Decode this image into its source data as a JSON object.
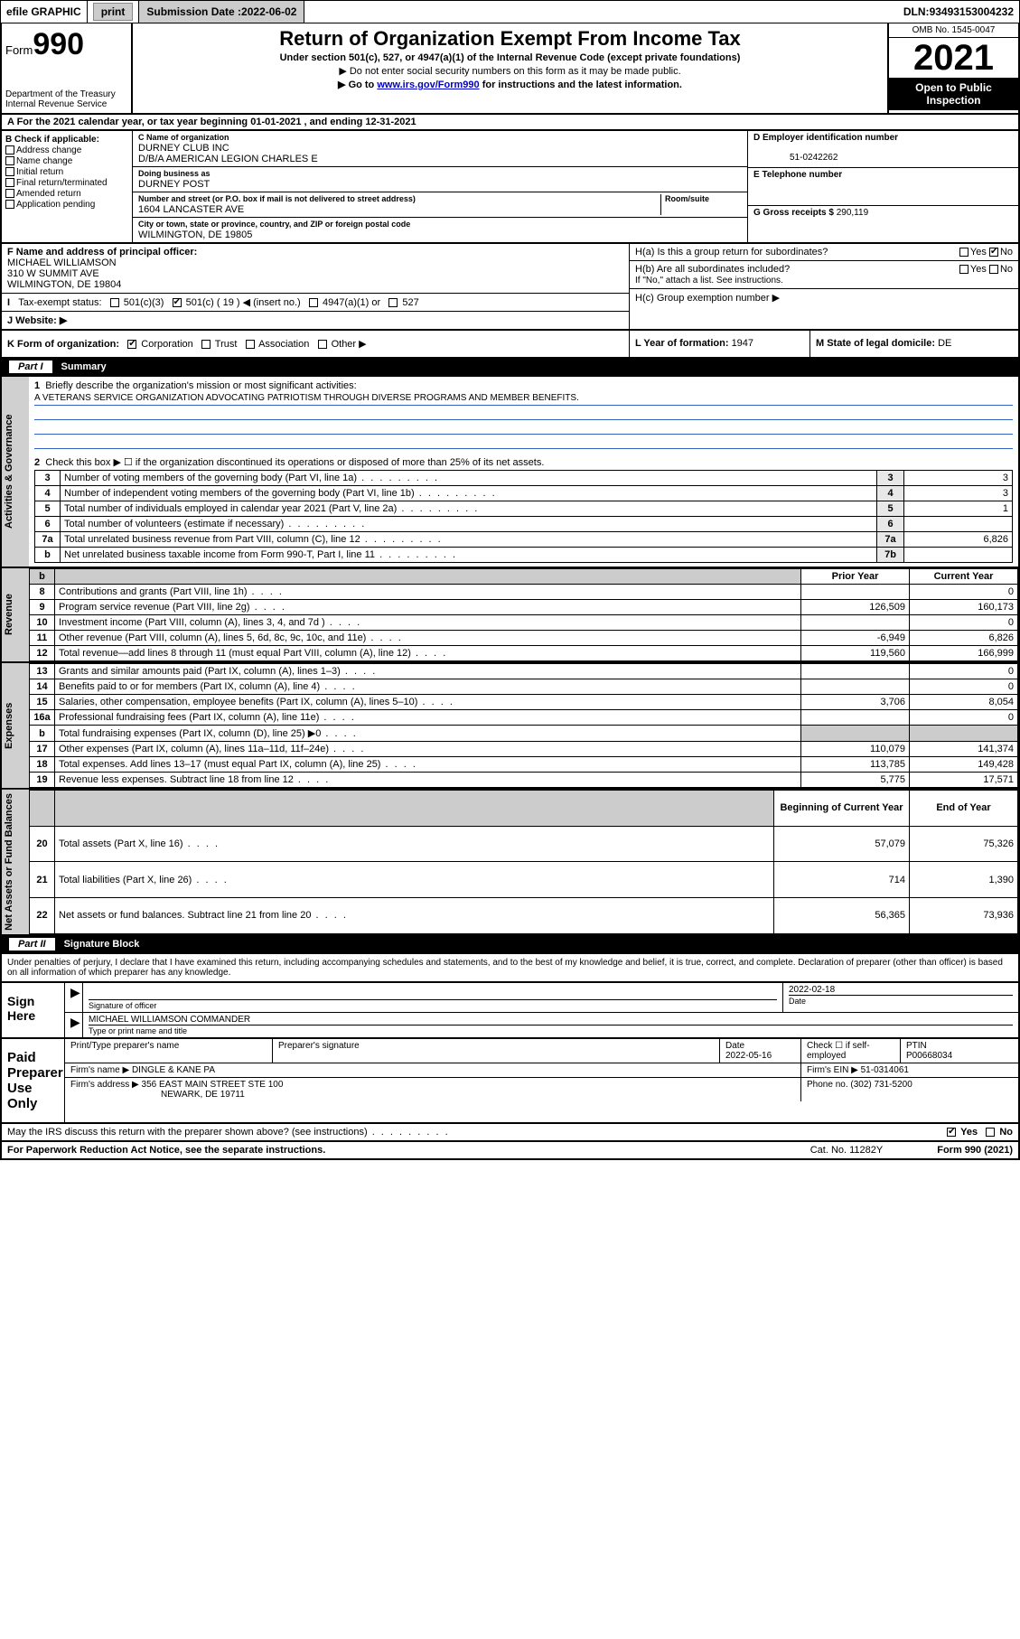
{
  "topbar": {
    "efile": "efile GRAPHIC",
    "print": "print",
    "submission_label": "Submission Date : ",
    "submission_date": "2022-06-02",
    "dln_label": "DLN: ",
    "dln": "93493153004232"
  },
  "header": {
    "form_label": "Form",
    "form_no": "990",
    "dept": "Department of the Treasury",
    "irs": "Internal Revenue Service",
    "title": "Return of Organization Exempt From Income Tax",
    "sub1": "Under section 501(c), 527, or 4947(a)(1) of the Internal Revenue Code (except private foundations)",
    "sub2": "▶ Do not enter social security numbers on this form as it may be made public.",
    "sub3_pre": "▶ Go to ",
    "sub3_link": "www.irs.gov/Form990",
    "sub3_post": " for instructions and the latest information.",
    "omb": "OMB No. 1545-0047",
    "year": "2021",
    "open": "Open to Public Inspection"
  },
  "period": {
    "text_pre": "A For the 2021 calendar year, or tax year beginning ",
    "begin": "01-01-2021",
    "mid": " , and ending ",
    "end": "12-31-2021"
  },
  "boxB": {
    "title": "B Check if applicable:",
    "items": [
      "Address change",
      "Name change",
      "Initial return",
      "Final return/terminated",
      "Amended return",
      "Application pending"
    ]
  },
  "boxC": {
    "name_lbl": "C Name of organization",
    "name": "DURNEY CLUB INC",
    "dba_line": "D/B/A AMERICAN LEGION CHARLES E",
    "dba_lbl": "Doing business as",
    "dba": "DURNEY POST",
    "addr_lbl": "Number and street (or P.O. box if mail is not delivered to street address)",
    "room_lbl": "Room/suite",
    "addr": "1604 LANCASTER AVE",
    "city_lbl": "City or town, state or province, country, and ZIP or foreign postal code",
    "city": "WILMINGTON, DE  19805"
  },
  "boxD": {
    "lbl": "D Employer identification number",
    "val": "51-0242262"
  },
  "boxE": {
    "lbl": "E Telephone number",
    "val": ""
  },
  "boxG": {
    "lbl": "G Gross receipts $ ",
    "val": "290,119"
  },
  "boxF": {
    "lbl": "F Name and address of principal officer:",
    "name": "MICHAEL WILLIAMSON",
    "addr1": "310 W SUMMIT AVE",
    "addr2": "WILMINGTON, DE  19804"
  },
  "boxH": {
    "a": "H(a)  Is this a group return for subordinates?",
    "b": "H(b)  Are all subordinates included?",
    "note": "If \"No,\" attach a list. See instructions.",
    "c": "H(c)  Group exemption number ▶",
    "yes": "Yes",
    "no": "No"
  },
  "boxI": {
    "lbl": "Tax-exempt status:",
    "o1": "501(c)(3)",
    "o2": "501(c) ( 19 ) ◀ (insert no.)",
    "o3": "4947(a)(1) or",
    "o4": "527"
  },
  "boxJ": {
    "lbl": "J   Website: ▶"
  },
  "boxK": {
    "lbl": "K Form of organization:",
    "o1": "Corporation",
    "o2": "Trust",
    "o3": "Association",
    "o4": "Other ▶"
  },
  "boxL": {
    "lbl": "L Year of formation: ",
    "val": "1947"
  },
  "boxM": {
    "lbl": "M State of legal domicile: ",
    "val": "DE"
  },
  "part1": {
    "num": "Part I",
    "title": "Summary"
  },
  "vlabels": {
    "gov": "Activities & Governance",
    "rev": "Revenue",
    "exp": "Expenses",
    "net": "Net Assets or Fund Balances"
  },
  "summary": {
    "l1_lbl": "Briefly describe the organization's mission or most significant activities:",
    "l1_txt": "A VETERANS SERVICE ORGANIZATION ADVOCATING PATRIOTISM THROUGH DIVERSE PROGRAMS AND MEMBER BENEFITS.",
    "l2": "Check this box ▶ ☐  if the organization discontinued its operations or disposed of more than 25% of its net assets.",
    "rows_gov": [
      {
        "n": "3",
        "t": "Number of voting members of the governing body (Part VI, line 1a)",
        "r": "3",
        "v": "3"
      },
      {
        "n": "4",
        "t": "Number of independent voting members of the governing body (Part VI, line 1b)",
        "r": "4",
        "v": "3"
      },
      {
        "n": "5",
        "t": "Total number of individuals employed in calendar year 2021 (Part V, line 2a)",
        "r": "5",
        "v": "1"
      },
      {
        "n": "6",
        "t": "Total number of volunteers (estimate if necessary)",
        "r": "6",
        "v": ""
      },
      {
        "n": "7a",
        "t": "Total unrelated business revenue from Part VIII, column (C), line 12",
        "r": "7a",
        "v": "6,826"
      },
      {
        "n": "b",
        "t": "Net unrelated business taxable income from Form 990-T, Part I, line 11",
        "r": "7b",
        "v": ""
      }
    ],
    "col_prior": "Prior Year",
    "col_curr": "Current Year",
    "rows_rev": [
      {
        "n": "8",
        "t": "Contributions and grants (Part VIII, line 1h)",
        "p": "",
        "c": "0"
      },
      {
        "n": "9",
        "t": "Program service revenue (Part VIII, line 2g)",
        "p": "126,509",
        "c": "160,173"
      },
      {
        "n": "10",
        "t": "Investment income (Part VIII, column (A), lines 3, 4, and 7d )",
        "p": "",
        "c": "0"
      },
      {
        "n": "11",
        "t": "Other revenue (Part VIII, column (A), lines 5, 6d, 8c, 9c, 10c, and 11e)",
        "p": "-6,949",
        "c": "6,826"
      },
      {
        "n": "12",
        "t": "Total revenue—add lines 8 through 11 (must equal Part VIII, column (A), line 12)",
        "p": "119,560",
        "c": "166,999"
      }
    ],
    "rows_exp": [
      {
        "n": "13",
        "t": "Grants and similar amounts paid (Part IX, column (A), lines 1–3)",
        "p": "",
        "c": "0"
      },
      {
        "n": "14",
        "t": "Benefits paid to or for members (Part IX, column (A), line 4)",
        "p": "",
        "c": "0"
      },
      {
        "n": "15",
        "t": "Salaries, other compensation, employee benefits (Part IX, column (A), lines 5–10)",
        "p": "3,706",
        "c": "8,054"
      },
      {
        "n": "16a",
        "t": "Professional fundraising fees (Part IX, column (A), line 11e)",
        "p": "",
        "c": "0"
      },
      {
        "n": "b",
        "t": "Total fundraising expenses (Part IX, column (D), line 25) ▶0",
        "p": "GREY",
        "c": "GREY"
      },
      {
        "n": "17",
        "t": "Other expenses (Part IX, column (A), lines 11a–11d, 11f–24e)",
        "p": "110,079",
        "c": "141,374"
      },
      {
        "n": "18",
        "t": "Total expenses. Add lines 13–17 (must equal Part IX, column (A), line 25)",
        "p": "113,785",
        "c": "149,428"
      },
      {
        "n": "19",
        "t": "Revenue less expenses. Subtract line 18 from line 12",
        "p": "5,775",
        "c": "17,571"
      }
    ],
    "col_begin": "Beginning of Current Year",
    "col_end": "End of Year",
    "rows_net": [
      {
        "n": "20",
        "t": "Total assets (Part X, line 16)",
        "p": "57,079",
        "c": "75,326"
      },
      {
        "n": "21",
        "t": "Total liabilities (Part X, line 26)",
        "p": "714",
        "c": "1,390"
      },
      {
        "n": "22",
        "t": "Net assets or fund balances. Subtract line 21 from line 20",
        "p": "56,365",
        "c": "73,936"
      }
    ]
  },
  "part2": {
    "num": "Part II",
    "title": "Signature Block"
  },
  "sig_decl": "Under penalties of perjury, I declare that I have examined this return, including accompanying schedules and statements, and to the best of my knowledge and belief, it is true, correct, and complete. Declaration of preparer (other than officer) is based on all information of which preparer has any knowledge.",
  "sign_here": {
    "lbl": "Sign Here",
    "sig_of": "Signature of officer",
    "date": "2022-02-18",
    "date_lbl": "Date",
    "name": "MICHAEL WILLIAMSON  COMMANDER",
    "name_lbl": "Type or print name and title"
  },
  "paid": {
    "lbl": "Paid Preparer Use Only",
    "h1": "Print/Type preparer's name",
    "h2": "Preparer's signature",
    "h3": "Date",
    "date": "2022-05-16",
    "h4": "Check ☐ if self-employed",
    "h5": "PTIN",
    "ptin": "P00668034",
    "firm_name_lbl": "Firm's name    ▶ ",
    "firm_name": "DINGLE & KANE PA",
    "firm_ein_lbl": "Firm's EIN ▶ ",
    "firm_ein": "51-0314061",
    "firm_addr_lbl": "Firm's address ▶ ",
    "firm_addr1": "356 EAST MAIN STREET STE 100",
    "firm_addr2": "NEWARK, DE  19711",
    "phone_lbl": "Phone no. ",
    "phone": "(302) 731-5200"
  },
  "discuss": {
    "txt": "May the IRS discuss this return with the preparer shown above? (see instructions)",
    "yes": "Yes",
    "no": "No"
  },
  "footer": {
    "l": "For Paperwork Reduction Act Notice, see the separate instructions.",
    "m": "Cat. No. 11282Y",
    "r": "Form 990 (2021)"
  }
}
